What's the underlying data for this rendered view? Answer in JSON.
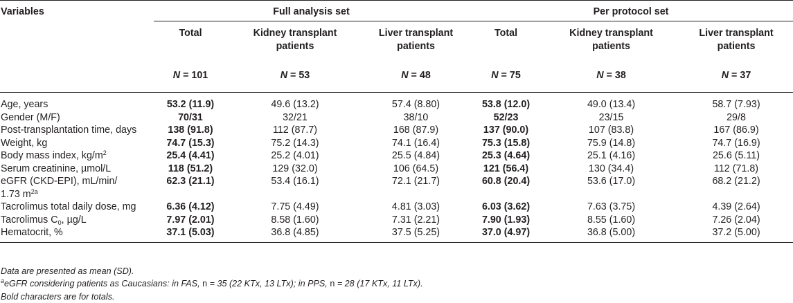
{
  "header": {
    "variables": "Variables",
    "groups": [
      "Full analysis set",
      "Per protocol set"
    ],
    "columns": [
      "Total",
      "Kidney transplant patients",
      "Liver transplant patients",
      "Total",
      "Kidney transplant patients",
      "Liver transplant patients"
    ],
    "n_prefix": "N",
    "n_values": [
      "= 101",
      "= 53",
      "= 48",
      "= 75",
      "= 38",
      "= 37"
    ]
  },
  "rows": [
    {
      "label": "Age, years",
      "values": [
        "53.2 (11.9)",
        "49.6 (13.2)",
        "57.4 (8.80)",
        "53.8 (12.0)",
        "49.0 (13.4)",
        "58.7 (7.93)"
      ]
    },
    {
      "label": "Gender (M/F)",
      "values": [
        "70/31",
        "32/21",
        "38/10",
        "52/23",
        "23/15",
        "29/8"
      ]
    },
    {
      "label": "Post-transplantation time, days",
      "values": [
        "138 (91.8)",
        "112 (87.7)",
        "168 (87.9)",
        "137 (90.0)",
        "107 (83.8)",
        "167 (86.9)"
      ]
    },
    {
      "label": "Weight, kg",
      "values": [
        "74.7 (15.3)",
        "75.2 (14.3)",
        "74.1 (16.4)",
        "75.3 (15.8)",
        "75.9 (14.8)",
        "74.7 (16.9)"
      ]
    },
    {
      "label": "Body mass index, kg/m",
      "label_sup": "2",
      "values": [
        "25.4 (4.41)",
        "25.2 (4.01)",
        "25.5 (4.84)",
        "25.3 (4.64)",
        "25.1 (4.16)",
        "25.6 (5.11)"
      ]
    },
    {
      "label": "Serum creatinine, µmol/L",
      "values": [
        "118 (51.2)",
        "129 (32.0)",
        "106 (64.5)",
        "121 (56.4)",
        "130 (34.4)",
        "112 (71.8)"
      ]
    },
    {
      "label": "eGFR (CKD-EPI), mL/min/",
      "label2": "1.73 m",
      "label2_sup": "2a",
      "values": [
        "62.3 (21.1)",
        "53.4 (16.1)",
        "72.1 (21.7)",
        "60.8 (20.4)",
        "53.6 (17.0)",
        "68.2 (21.2)"
      ]
    },
    {
      "label": "Tacrolimus total daily dose, mg",
      "values": [
        "6.36 (4.12)",
        "7.75 (4.49)",
        "4.81 (3.03)",
        "6.03 (3.62)",
        "7.63 (3.75)",
        "4.39 (2.64)"
      ]
    },
    {
      "label": "Tacrolimus C",
      "label_sub": "0",
      "label_tail": ", µg/L",
      "values": [
        "7.97 (2.01)",
        "8.58 (1.60)",
        "7.31 (2.21)",
        "7.90 (1.93)",
        "8.55 (1.60)",
        "7.26 (2.04)"
      ]
    },
    {
      "label": "Hematocrit, %",
      "values": [
        "37.1 (5.03)",
        "36.8 (4.85)",
        "37.5 (5.25)",
        "37.0 (4.97)",
        "36.8 (5.00)",
        "37.2 (5.00)"
      ]
    }
  ],
  "notes": {
    "line1": "Data are presented as mean (SD).",
    "line2_sup": "a",
    "line2_a": "eGFR considering patients as Caucasians: in FAS, ",
    "line2_b": "n",
    "line2_c": " = 35 (22 KTx, 13 LTx); in PPS, ",
    "line2_d": "n",
    "line2_e": " = 28 (17 KTx, 11 LTx).",
    "line3": "Bold characters are for totals."
  }
}
